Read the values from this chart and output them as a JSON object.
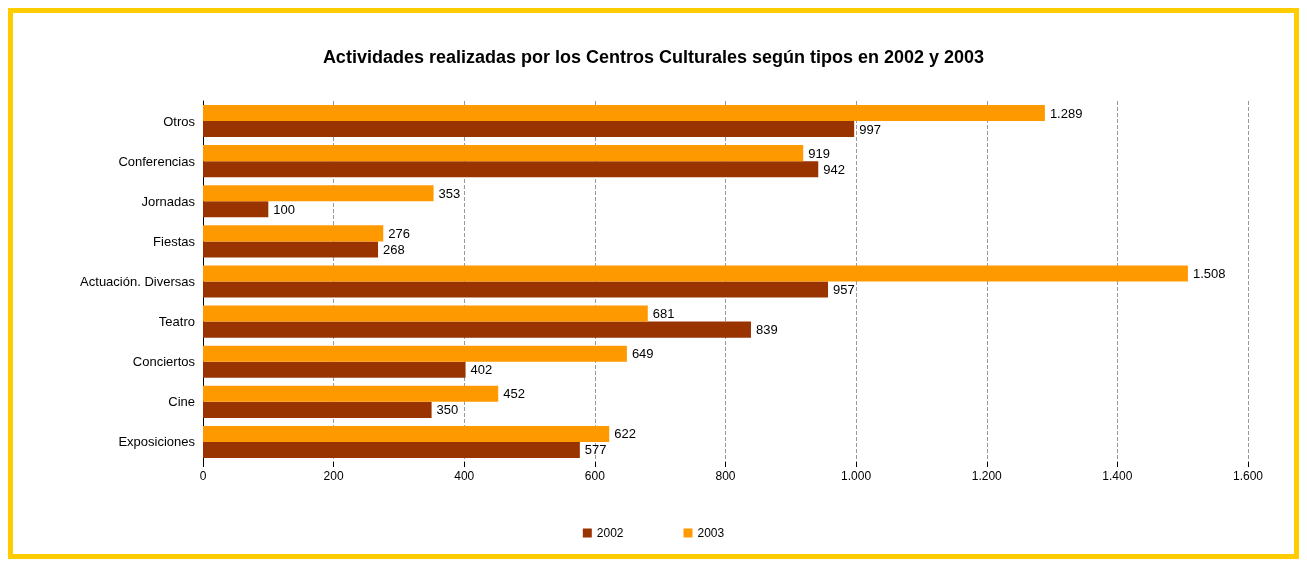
{
  "chart_data": {
    "type": "bar",
    "orientation": "horizontal",
    "title": "Actividades realizadas por los Centros Culturales según tipos en 2002 y 2003",
    "categories": [
      "Otros",
      "Conferencias",
      "Jornadas",
      "Fiestas",
      "Actuación. Diversas",
      "Teatro",
      "Conciertos",
      "Cine",
      "Exposiciones"
    ],
    "series": [
      {
        "name": "2002",
        "color": "#993300",
        "values": [
          997,
          942,
          100,
          268,
          957,
          839,
          402,
          350,
          577
        ],
        "value_labels": [
          "997",
          "942",
          "100",
          "268",
          "957",
          "839",
          "402",
          "350",
          "577"
        ]
      },
      {
        "name": "2003",
        "color": "#ff9900",
        "values": [
          1289,
          919,
          353,
          276,
          1508,
          681,
          649,
          452,
          622
        ],
        "value_labels": [
          "1.289",
          "919",
          "353",
          "276",
          "1.508",
          "681",
          "649",
          "452",
          "622"
        ]
      }
    ],
    "xlim": [
      0,
      1600
    ],
    "xticks": [
      0,
      200,
      400,
      600,
      800,
      {
        "value": 1000,
        "label": "1.000"
      },
      {
        "value": 1200,
        "label": "1.200"
      },
      {
        "value": 1400,
        "label": "1.400"
      },
      {
        "value": 1600,
        "label": "1.600"
      }
    ],
    "grid": "x",
    "legend": "bottom"
  }
}
